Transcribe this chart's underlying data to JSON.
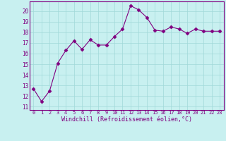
{
  "x": [
    0,
    1,
    2,
    3,
    4,
    5,
    6,
    7,
    8,
    9,
    10,
    11,
    12,
    13,
    14,
    15,
    16,
    17,
    18,
    19,
    20,
    21,
    22,
    23
  ],
  "y": [
    12.7,
    11.5,
    12.5,
    15.1,
    16.3,
    17.2,
    16.4,
    17.3,
    16.8,
    16.8,
    17.6,
    18.3,
    20.5,
    20.1,
    19.4,
    18.2,
    18.1,
    18.5,
    18.3,
    17.9,
    18.3,
    18.1,
    18.1,
    18.1
  ],
  "line_color": "#800080",
  "marker": "D",
  "markersize": 2.5,
  "linewidth": 0.8,
  "background_color": "#c8f0f0",
  "grid_color": "#a0d8d8",
  "xlabel": "Windchill (Refroidissement éolien,°C)",
  "xlabel_color": "#800080",
  "ylabel_ticks": [
    11,
    12,
    13,
    14,
    15,
    16,
    17,
    18,
    19,
    20
  ],
  "ylim": [
    10.7,
    20.9
  ],
  "xlim": [
    -0.5,
    23.5
  ],
  "tick_color": "#800080",
  "font_color": "#800080",
  "spine_color": "#800080",
  "xtick_fontsize": 5.0,
  "ytick_fontsize": 5.5,
  "xlabel_fontsize": 6.0
}
